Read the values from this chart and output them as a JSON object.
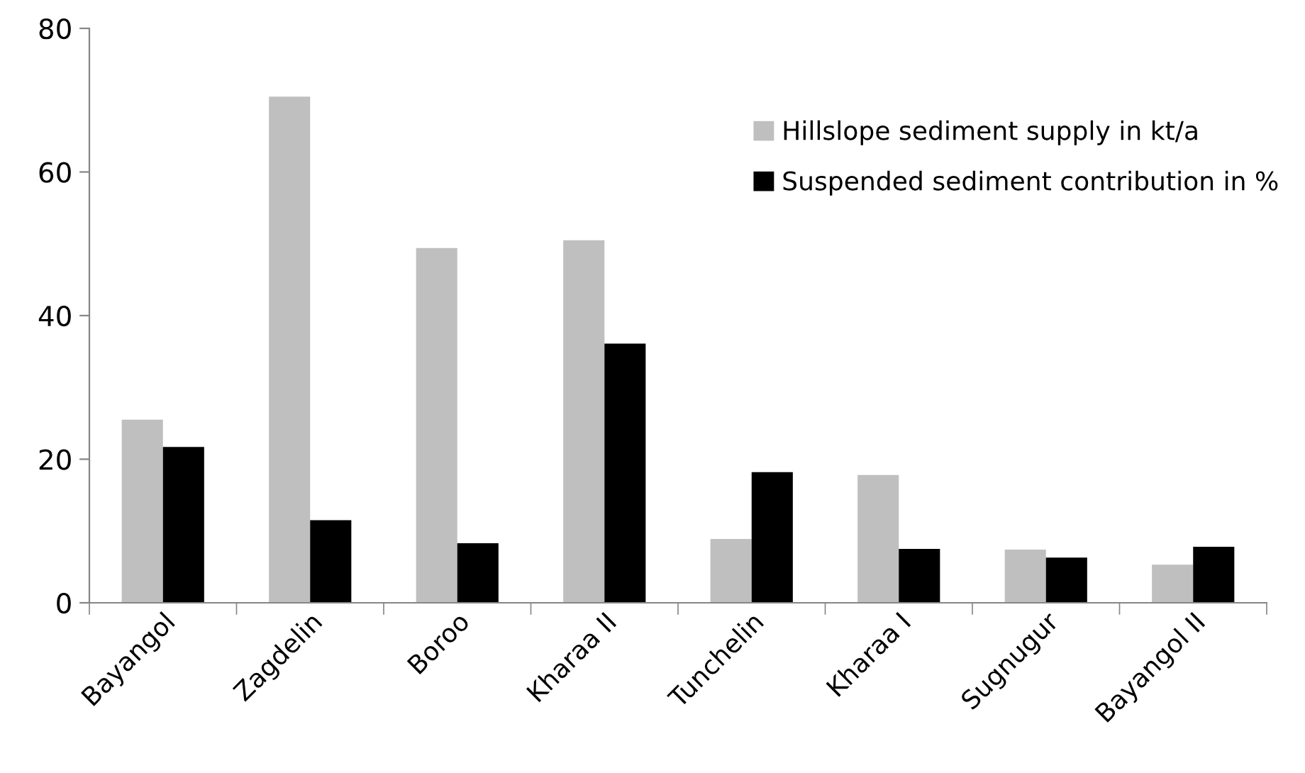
{
  "chart_data": {
    "type": "bar",
    "categories": [
      "Bayangol",
      "Zagdelin",
      "Boroo",
      "Kharaa II",
      "Tunchelin",
      "Kharaa I",
      "Sugnugur",
      "Bayangol II"
    ],
    "series": [
      {
        "name": "Hillslope sediment supply in kt/a",
        "color": "#bfbfbf",
        "values": [
          25.5,
          70.5,
          49.4,
          50.5,
          8.9,
          17.8,
          7.4,
          5.3
        ]
      },
      {
        "name": "Suspended sediment contribution in %",
        "color": "#000000",
        "values": [
          21.7,
          11.5,
          8.3,
          36.1,
          18.2,
          7.5,
          6.3,
          7.8
        ]
      }
    ],
    "ylim": [
      0,
      80
    ],
    "yticks": [
      0,
      20,
      40,
      60,
      80
    ],
    "legend": "top right",
    "grid": false
  }
}
